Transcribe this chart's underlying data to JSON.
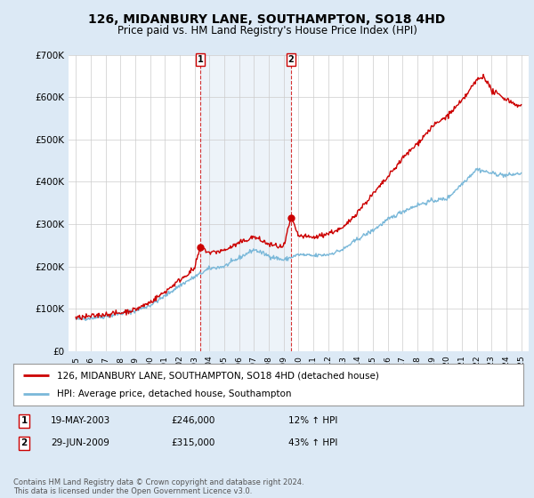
{
  "title": "126, MIDANBURY LANE, SOUTHAMPTON, SO18 4HD",
  "subtitle": "Price paid vs. HM Land Registry's House Price Index (HPI)",
  "ylim": [
    0,
    700000
  ],
  "yticks": [
    0,
    100000,
    200000,
    300000,
    400000,
    500000,
    600000,
    700000
  ],
  "ytick_labels": [
    "£0",
    "£100K",
    "£200K",
    "£300K",
    "£400K",
    "£500K",
    "£600K",
    "£700K"
  ],
  "hpi_color": "#7ab8d9",
  "price_color": "#cc0000",
  "purchase1_year": 2003.38,
  "purchase1_price": 246000,
  "purchase2_year": 2009.49,
  "purchase2_price": 315000,
  "legend_label_price": "126, MIDANBURY LANE, SOUTHAMPTON, SO18 4HD (detached house)",
  "legend_label_hpi": "HPI: Average price, detached house, Southampton",
  "annotation1_label": "1",
  "annotation1_date": "19-MAY-2003",
  "annotation1_price": "£246,000",
  "annotation1_hpi": "12% ↑ HPI",
  "annotation2_label": "2",
  "annotation2_date": "29-JUN-2009",
  "annotation2_price": "£315,000",
  "annotation2_hpi": "43% ↑ HPI",
  "footer": "Contains HM Land Registry data © Crown copyright and database right 2024.\nThis data is licensed under the Open Government Licence v3.0.",
  "bg_color": "#dce9f5",
  "plot_bg_color": "#ffffff",
  "title_fontsize": 10,
  "subtitle_fontsize": 8.5,
  "tick_fontsize": 7.5
}
